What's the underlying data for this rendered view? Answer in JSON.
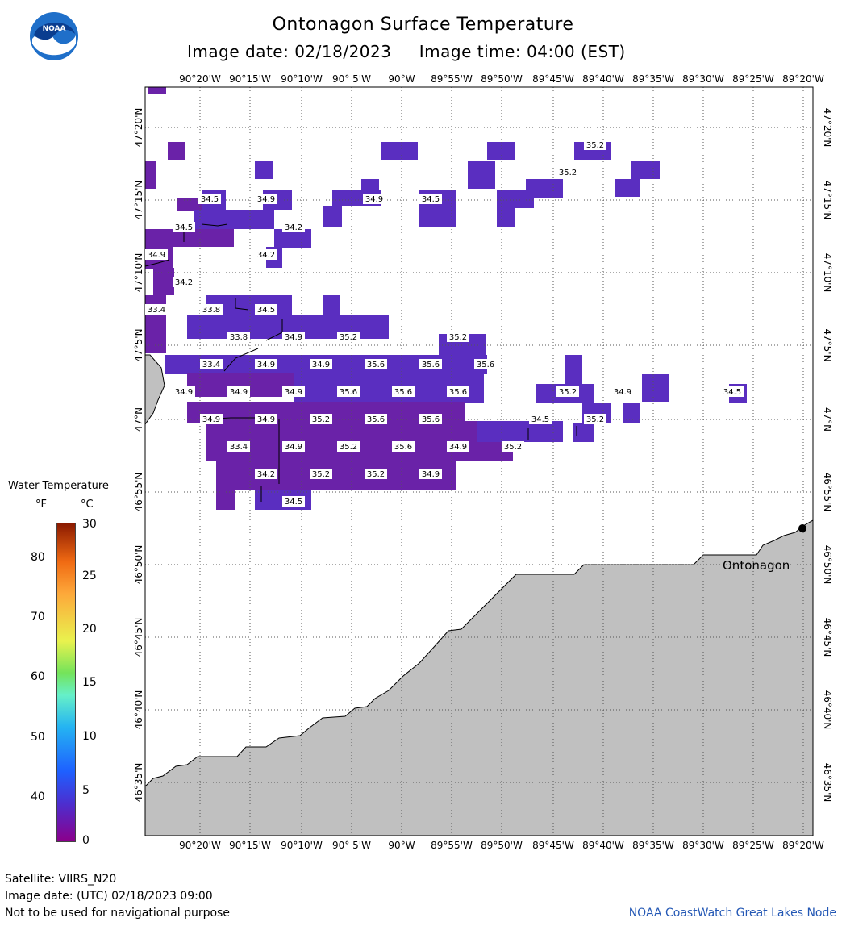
{
  "title": "Ontonagon Surface Temperature",
  "subtitle": "Image date: 02/18/2023     Image time: 04:00 (EST)",
  "lon_labels": [
    "90°20'W",
    "90°15'W",
    "90°10'W",
    "90° 5'W",
    "90°W",
    "89°55'W",
    "89°50'W",
    "89°45'W",
    "89°40'W",
    "89°35'W",
    "89°30'W",
    "89°25'W",
    "89°20'W"
  ],
  "lat_labels": [
    "47°20'N",
    "47°15'N",
    "47°10'N",
    "47°5'N",
    "47°N",
    "46°55'N",
    "46°50'N",
    "46°45'N",
    "46°40'N",
    "46°35'N"
  ],
  "place_label": "Ontonagon",
  "legend": {
    "title": "Water Temperature",
    "unit_f": "°F",
    "unit_c": "°C",
    "f_ticks": [
      "80",
      "70",
      "60",
      "50",
      "40"
    ],
    "c_ticks": [
      "30",
      "25",
      "20",
      "15",
      "10",
      "5",
      "0"
    ]
  },
  "temperature_labels": [
    {
      "text": "35.2"
    },
    {
      "text": "35.2"
    },
    {
      "text": "34.5"
    },
    {
      "text": "34.9"
    },
    {
      "text": "34.9"
    },
    {
      "text": "34.5"
    },
    {
      "text": "34.5"
    },
    {
      "text": "34.2"
    },
    {
      "text": "34.9"
    },
    {
      "text": "34.2"
    },
    {
      "text": "34.2"
    },
    {
      "text": "33.4"
    },
    {
      "text": "33.8"
    },
    {
      "text": "34.5"
    },
    {
      "text": "33.8"
    },
    {
      "text": "34.9"
    },
    {
      "text": "35.2"
    },
    {
      "text": "35.2"
    },
    {
      "text": "33.4"
    },
    {
      "text": "34.9"
    },
    {
      "text": "34.9"
    },
    {
      "text": "35.6"
    },
    {
      "text": "35.6"
    },
    {
      "text": "35.6"
    },
    {
      "text": "34.9"
    },
    {
      "text": "34.9"
    },
    {
      "text": "34.9"
    },
    {
      "text": "35.6"
    },
    {
      "text": "35.6"
    },
    {
      "text": "35.6"
    },
    {
      "text": "35.2"
    },
    {
      "text": "34.9"
    },
    {
      "text": "34.5"
    },
    {
      "text": "34.9"
    },
    {
      "text": "34.9"
    },
    {
      "text": "35.2"
    },
    {
      "text": "35.6"
    },
    {
      "text": "35.6"
    },
    {
      "text": "34.5"
    },
    {
      "text": "35.2"
    },
    {
      "text": "33.4"
    },
    {
      "text": "34.9"
    },
    {
      "text": "35.2"
    },
    {
      "text": "35.6"
    },
    {
      "text": "34.9"
    },
    {
      "text": "35.2"
    },
    {
      "text": "34.2"
    },
    {
      "text": "35.2"
    },
    {
      "text": "35.2"
    },
    {
      "text": "34.9"
    },
    {
      "text": "34.5"
    }
  ],
  "footer": {
    "satellite": "Satellite: VIIRS_N20",
    "utc": "Image date: (UTC) 02/18/2023  09:00",
    "warning": "Not to be used for navigational purpose",
    "credit": "NOAA CoastWatch Great Lakes Node"
  },
  "colors": {
    "water_dark": "#6a22a8",
    "water_mid": "#5a2ec0",
    "land": "#c0c0c0",
    "credit": "#2458b5"
  }
}
